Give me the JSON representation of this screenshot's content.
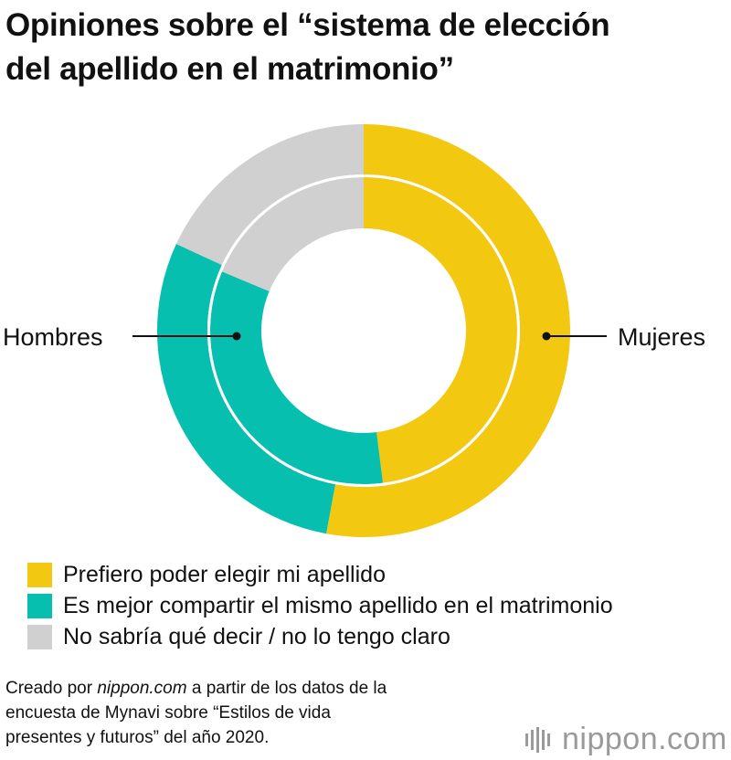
{
  "title": {
    "line1": "Opiniones sobre el “sistema de elección",
    "line2": "del apellido en el matrimonio”"
  },
  "chart_data": {
    "type": "donut",
    "categories": [
      "Prefiero poder elegir mi apellido",
      "Es mejor compartir el mismo apellido en el matrimonio",
      "No sabría qué decir / no lo tengo claro"
    ],
    "colors": [
      "#F2C811",
      "#06BFAE",
      "#D0D0D0"
    ],
    "series": [
      {
        "name": "Mujeres",
        "ring": "outer",
        "values": [
          52.9,
          29.0,
          18.1
        ]
      },
      {
        "name": "Hombres",
        "ring": "inner",
        "values": [
          48.0,
          33.3,
          18.7
        ]
      }
    ],
    "legend_position": "bottom-left"
  },
  "legend": {
    "items": [
      {
        "label": "Prefiero poder elegir mi apellido",
        "color": "#F2C811"
      },
      {
        "label": "Es mejor compartir el mismo apellido en el matrimonio",
        "color": "#06BFAE"
      },
      {
        "label": "No sabría qué decir / no lo tengo claro",
        "color": "#D0D0D0"
      }
    ]
  },
  "source": {
    "prefix": "Creado por ",
    "site": "nippon.com",
    "line1_rest": " a partir de los datos de la",
    "line2": "encuesta de Mynavi sobre “Estilos de vida",
    "line3": "presentes y futuros” del año 2020."
  },
  "logo": {
    "text": "nippon.com"
  }
}
